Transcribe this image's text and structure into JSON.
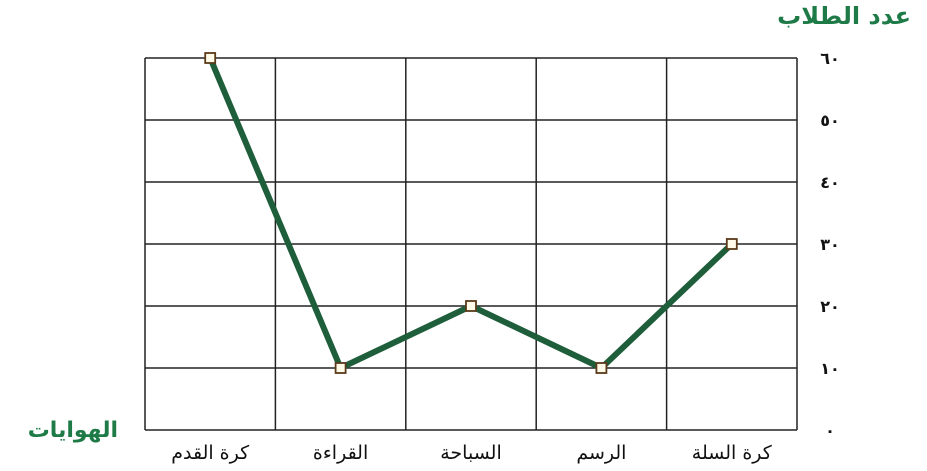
{
  "chart_data": {
    "type": "line",
    "ylabel": "عدد الطلاب",
    "xlabel": "الهوايات",
    "categories": [
      "كرة السلة",
      "الرسم",
      "السباحة",
      "القراءة",
      "كرة القدم"
    ],
    "y_tick_labels": [
      "٠",
      "١٠",
      "٢٠",
      "٣٠",
      "٤٠",
      "٥٠",
      "٦٠"
    ],
    "ylim": [
      0,
      60
    ],
    "grid": true,
    "x_direction": "right-to-left",
    "series": [
      {
        "values": [
          30,
          10,
          20,
          10,
          60
        ]
      }
    ],
    "colors": {
      "line": "#1e5e3a",
      "marker_fill": "#fffbe8",
      "marker_stroke": "#5a3a1a",
      "grid": "#222222",
      "axis_title": "#1e7a46"
    }
  }
}
